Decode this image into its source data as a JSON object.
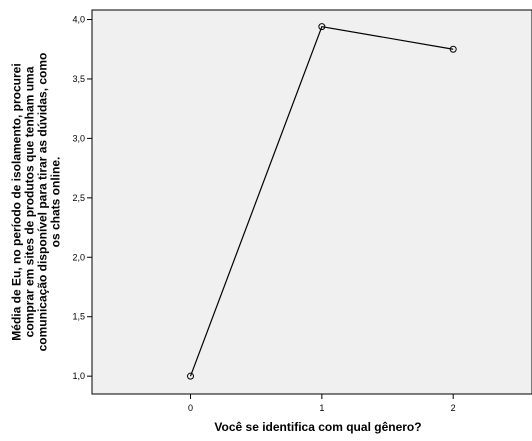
{
  "chart_data": {
    "type": "line",
    "xlabel": "Você se identifica com qual gênero?",
    "ylabel_lines": [
      "Média de Eu,  no período de isolamento, procurei",
      "comprar em sites de produtos que tenham uma",
      "comunicação disponível para tirar as dúvidas, como",
      "os chats online."
    ],
    "x": [
      0,
      1,
      2
    ],
    "y": [
      1.0,
      3.94,
      3.75
    ],
    "xticks": [
      0,
      1,
      2
    ],
    "xtick_labels": [
      "0",
      "1",
      "2"
    ],
    "xlim": [
      -0.75,
      2.6
    ],
    "yticks": [
      1.0,
      1.5,
      2.0,
      2.5,
      3.0,
      3.5,
      4.0
    ],
    "ytick_labels": [
      "1,0",
      "1,5",
      "2,0",
      "2,5",
      "3,0",
      "3,5",
      "4,0"
    ],
    "ylim": [
      0.85,
      4.08
    ],
    "grid": false,
    "colors": {
      "plot_background": "#f0f0f0",
      "line": "#000000",
      "marker": "#000000"
    },
    "marker": "open-circle"
  }
}
